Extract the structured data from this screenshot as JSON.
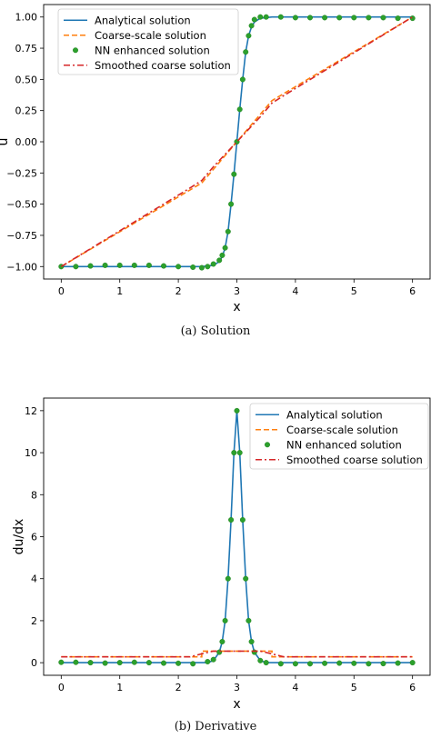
{
  "colors": {
    "analytical": "#1f77b4",
    "coarse": "#ff7f0e",
    "nn": "#2ca02c",
    "smoothed": "#d62728"
  },
  "captions": {
    "a": "(a) Solution",
    "b": "(b) Derivative"
  },
  "chart_data": [
    {
      "type": "line",
      "xlabel": "x",
      "ylabel": "u",
      "xlim": [
        -0.3,
        6.3
      ],
      "ylim": [
        -1.1,
        1.1
      ],
      "xticks": [
        0,
        1,
        2,
        3,
        4,
        5,
        6
      ],
      "yticks": [
        -1.0,
        -0.75,
        -0.5,
        -0.25,
        0.0,
        0.25,
        0.5,
        0.75,
        1.0
      ],
      "ytick_labels": [
        "−1.00",
        "−0.75",
        "−0.50",
        "−0.25",
        "0.00",
        "0.25",
        "0.50",
        "0.75",
        "1.00"
      ],
      "legend_position": "top-left",
      "grid": false,
      "series": [
        {
          "name": "Analytical solution",
          "style": "solid",
          "color_key": "analytical",
          "x": [
            0,
            2.4,
            2.6,
            2.7,
            2.75,
            2.8,
            2.85,
            2.9,
            2.95,
            3.0,
            3.05,
            3.1,
            3.15,
            3.2,
            3.25,
            3.3,
            3.4,
            3.6,
            6
          ],
          "y": [
            -1,
            -1,
            -0.99,
            -0.96,
            -0.92,
            -0.85,
            -0.72,
            -0.5,
            -0.26,
            0,
            0.26,
            0.5,
            0.72,
            0.85,
            0.92,
            0.96,
            0.99,
            1,
            1
          ]
        },
        {
          "name": "Coarse-scale solution",
          "style": "dashed",
          "color_key": "coarse",
          "x": [
            0,
            2.4,
            3.6,
            6
          ],
          "y": [
            -1,
            -0.33,
            0.33,
            1
          ]
        },
        {
          "name": "NN enhanced solution",
          "style": "markers",
          "color_key": "nn",
          "x": [
            0,
            0.25,
            0.5,
            0.75,
            1.0,
            1.25,
            1.5,
            1.75,
            2.0,
            2.25,
            2.4,
            2.5,
            2.6,
            2.7,
            2.75,
            2.8,
            2.85,
            2.9,
            2.95,
            3.0,
            3.05,
            3.1,
            3.15,
            3.2,
            3.25,
            3.3,
            3.4,
            3.5,
            3.75,
            4.0,
            4.25,
            4.5,
            4.75,
            5.0,
            5.25,
            5.5,
            5.75,
            6.0
          ],
          "y": [
            -1,
            -1,
            -0.995,
            -0.99,
            -0.99,
            -0.99,
            -0.99,
            -0.995,
            -1,
            -1.005,
            -1.01,
            -1.0,
            -0.98,
            -0.95,
            -0.91,
            -0.85,
            -0.72,
            -0.5,
            -0.26,
            0,
            0.26,
            0.5,
            0.72,
            0.85,
            0.93,
            0.98,
            1.0,
            1.0,
            1.0,
            0.995,
            0.995,
            0.995,
            0.995,
            0.995,
            0.995,
            0.995,
            0.99,
            0.99
          ]
        },
        {
          "name": "Smoothed coarse solution",
          "style": "dashdot",
          "color_key": "smoothed",
          "x": [
            0,
            2.2,
            2.4,
            2.6,
            3.0,
            3.4,
            3.6,
            3.8,
            6
          ],
          "y": [
            -1,
            -0.37,
            -0.31,
            -0.2,
            0,
            0.2,
            0.31,
            0.37,
            1
          ]
        }
      ]
    },
    {
      "type": "line",
      "xlabel": "x",
      "ylabel": "du/dx",
      "xlim": [
        -0.3,
        6.3
      ],
      "ylim": [
        -0.6,
        12.6
      ],
      "xticks": [
        0,
        1,
        2,
        3,
        4,
        5,
        6
      ],
      "yticks": [
        0,
        2,
        4,
        6,
        8,
        10,
        12
      ],
      "ytick_labels": [
        "0",
        "2",
        "4",
        "6",
        "8",
        "10",
        "12"
      ],
      "legend_position": "top-right",
      "grid": false,
      "series": [
        {
          "name": "Analytical solution",
          "style": "solid",
          "color_key": "analytical",
          "x": [
            0,
            2.5,
            2.6,
            2.7,
            2.75,
            2.8,
            2.85,
            2.9,
            2.95,
            3.0,
            3.05,
            3.1,
            3.15,
            3.2,
            3.25,
            3.3,
            3.4,
            3.5,
            6
          ],
          "y": [
            0,
            0,
            0.1,
            0.5,
            1.0,
            2.0,
            4.0,
            6.8,
            10.0,
            12.0,
            10.0,
            6.8,
            4.0,
            2.0,
            1.0,
            0.5,
            0.1,
            0,
            0
          ]
        },
        {
          "name": "Coarse-scale solution",
          "style": "dashed",
          "color_key": "coarse",
          "x": [
            0,
            2.4,
            2.4,
            3.6,
            3.6,
            6
          ],
          "y": [
            0.28,
            0.28,
            0.55,
            0.55,
            0.28,
            0.28
          ]
        },
        {
          "name": "NN enhanced solution",
          "style": "markers",
          "color_key": "nn",
          "x": [
            0,
            0.25,
            0.5,
            0.75,
            1.0,
            1.25,
            1.5,
            1.75,
            2.0,
            2.25,
            2.5,
            2.6,
            2.7,
            2.75,
            2.8,
            2.85,
            2.9,
            2.95,
            3.0,
            3.05,
            3.1,
            3.15,
            3.2,
            3.25,
            3.3,
            3.4,
            3.5,
            3.75,
            4.0,
            4.25,
            4.5,
            4.75,
            5.0,
            5.25,
            5.5,
            5.75,
            6.0
          ],
          "y": [
            0.02,
            0.02,
            0.0,
            -0.02,
            0.0,
            0.02,
            0.0,
            -0.02,
            -0.03,
            -0.05,
            0.05,
            0.15,
            0.5,
            1.0,
            2.0,
            4.0,
            6.8,
            10.0,
            12.0,
            10.0,
            6.8,
            4.0,
            2.0,
            1.0,
            0.5,
            0.1,
            0.0,
            -0.05,
            -0.05,
            -0.05,
            -0.03,
            -0.02,
            -0.03,
            -0.05,
            -0.04,
            -0.02,
            0.0
          ]
        },
        {
          "name": "Smoothed coarse solution",
          "style": "dashdot",
          "color_key": "smoothed",
          "x": [
            0,
            2.2,
            2.4,
            2.6,
            3.4,
            3.6,
            3.8,
            6
          ],
          "y": [
            0.28,
            0.28,
            0.42,
            0.55,
            0.55,
            0.42,
            0.28,
            0.28
          ]
        }
      ]
    }
  ]
}
